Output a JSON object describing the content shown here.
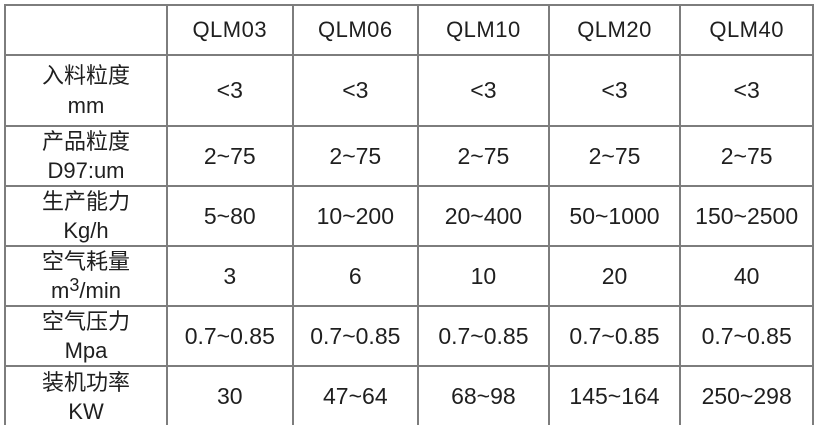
{
  "table": {
    "corner": "",
    "columns": [
      "QLM03",
      "QLM06",
      "QLM10",
      "QLM20",
      "QLM40"
    ],
    "rows": [
      {
        "label": "入料粒度",
        "unit": "mm",
        "values": [
          "<3",
          "<3",
          "<3",
          "<3",
          "<3"
        ]
      },
      {
        "label": "产品粒度",
        "unit": "D97:um",
        "values": [
          "2~75",
          "2~75",
          "2~75",
          "2~75",
          "2~75"
        ]
      },
      {
        "label": "生产能力",
        "unit": "Kg/h",
        "values": [
          "5~80",
          "10~200",
          "20~400",
          "50~1000",
          "150~2500"
        ]
      },
      {
        "label": "空气耗量",
        "unit_pre": "m",
        "unit_sup": "3",
        "unit_post": "/min",
        "values": [
          "3",
          "6",
          "10",
          "20",
          "40"
        ]
      },
      {
        "label": "空气压力",
        "unit": "Mpa",
        "values": [
          "0.7~0.85",
          "0.7~0.85",
          "0.7~0.85",
          "0.7~0.85",
          "0.7~0.85"
        ]
      },
      {
        "label": "装机功率",
        "unit": "KW",
        "values": [
          "30",
          "47~64",
          "68~98",
          "145~164",
          "250~298"
        ]
      }
    ]
  },
  "colors": {
    "border": "#7d7d7d",
    "text": "#1f1f1f",
    "background": "#ffffff"
  }
}
